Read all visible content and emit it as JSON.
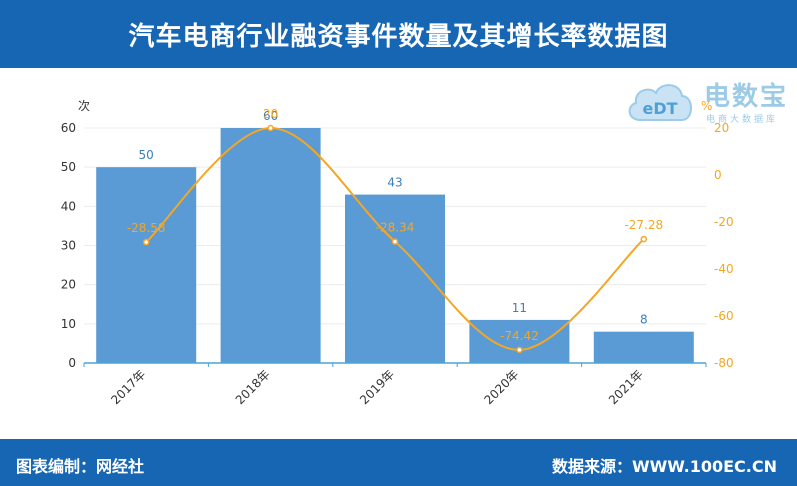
{
  "header": {
    "title": "汽车电商行业融资事件数量及其增长率数据图"
  },
  "footer": {
    "left": "图表编制：网经社",
    "right": "数据来源：WWW.100EC.CN"
  },
  "logo": {
    "mark": "eDT",
    "brand": "电数宝",
    "sub": "电商大数据库"
  },
  "colors": {
    "bar": "#5b9bd5",
    "line": "#f5a623",
    "header": "#1666b4"
  },
  "chart_data": {
    "type": "bar",
    "categories": [
      "2017年",
      "2018年",
      "2019年",
      "2020年",
      "2021年"
    ],
    "series": [
      {
        "values": [
          50,
          60,
          43,
          11,
          8
        ],
        "axis": "left"
      },
      {
        "type": "line",
        "values": [
          -28.58,
          20,
          -28.34,
          -74.42,
          -27.28
        ],
        "axis": "right"
      }
    ],
    "bar_labels": [
      "50",
      "60",
      "43",
      "11",
      "8"
    ],
    "line_labels": [
      "-28.58",
      "20",
      "-28.34",
      "-74.42",
      "-27.28"
    ],
    "ylabel": "次",
    "y2label": "%",
    "ylim": [
      0,
      60
    ],
    "y2lim": [
      -80,
      20
    ],
    "yticks": [
      "0",
      "10",
      "20",
      "30",
      "40",
      "50",
      "60"
    ],
    "y2ticks": [
      "-80",
      "-60",
      "-40",
      "-20",
      "0",
      "20"
    ],
    "grid": true
  }
}
